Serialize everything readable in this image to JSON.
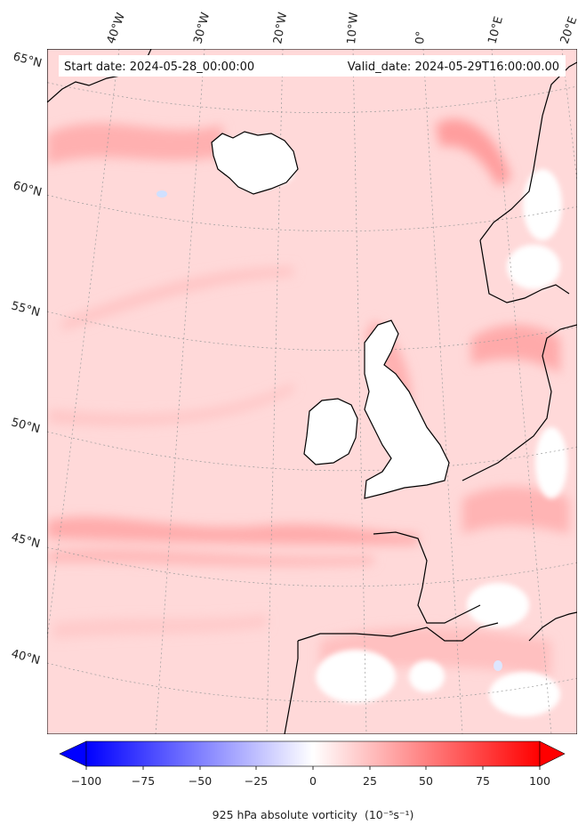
{
  "header": {
    "start_date": "Start date: 2024-05-28_00:00:00",
    "valid_date": "Valid_date: 2024-05-29T16:00:00.00"
  },
  "map": {
    "projection": "lambert-conformal",
    "region": "North Atlantic / Western Europe",
    "lon_labels": [
      "40°W",
      "30°W",
      "20°W",
      "10°W",
      "0°",
      "10°E",
      "20°E"
    ],
    "lat_labels": [
      "65°N",
      "60°N",
      "55°N",
      "50°N",
      "45°N",
      "40°N"
    ],
    "field": "925 hPa absolute vorticity",
    "coastline_color": "#000000",
    "gridline_style": "dotted grey"
  },
  "colorbar": {
    "label": "925 hPa absolute vorticity",
    "units": "(10⁻⁵s⁻¹)",
    "ticks": [
      "−100",
      "−75",
      "−50",
      "−25",
      "0",
      "25",
      "50",
      "75",
      "100"
    ],
    "min_color": "#0000ff",
    "mid_color": "#ffffff",
    "max_color": "#ff0000",
    "extend": "both"
  }
}
